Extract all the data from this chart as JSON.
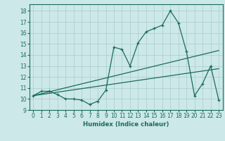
{
  "title": "",
  "xlabel": "Humidex (Indice chaleur)",
  "bg_color": "#cce8e8",
  "line_color": "#1a6b60",
  "grid_color": "#aacccc",
  "xlim": [
    -0.5,
    23.5
  ],
  "ylim": [
    9,
    18.6
  ],
  "yticks": [
    9,
    10,
    11,
    12,
    13,
    14,
    15,
    16,
    17,
    18
  ],
  "xticks": [
    0,
    1,
    2,
    3,
    4,
    5,
    6,
    7,
    8,
    9,
    10,
    11,
    12,
    13,
    14,
    15,
    16,
    17,
    18,
    19,
    20,
    21,
    22,
    23
  ],
  "line1_x": [
    0,
    1,
    2,
    3,
    4,
    5,
    6,
    7,
    8,
    9,
    10,
    11,
    12,
    13,
    14,
    15,
    16,
    17,
    18,
    19,
    20,
    21,
    22,
    23
  ],
  "line1_y": [
    10.3,
    10.7,
    10.7,
    10.4,
    10.0,
    10.0,
    9.9,
    9.5,
    9.8,
    10.8,
    14.7,
    14.5,
    13.0,
    15.1,
    16.1,
    16.4,
    16.7,
    18.0,
    16.9,
    14.3,
    10.3,
    11.4,
    13.0,
    9.9
  ],
  "line2_x": [
    0,
    23
  ],
  "line2_y": [
    10.3,
    14.4
  ],
  "line3_x": [
    0,
    23
  ],
  "line3_y": [
    10.3,
    12.75
  ],
  "tick_fontsize": 5.5,
  "xlabel_fontsize": 6.2
}
